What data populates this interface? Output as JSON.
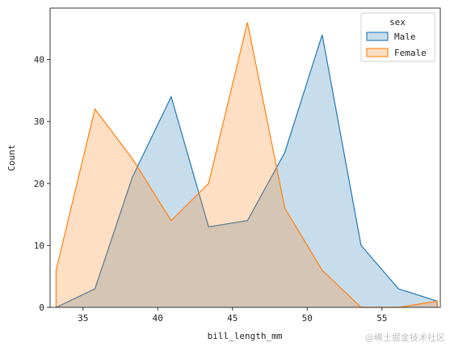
{
  "chart_data": {
    "type": "area",
    "xlabel": "bill_length_mm",
    "ylabel": "Count",
    "xlim": [
      32.8,
      58.9
    ],
    "ylim": [
      0,
      48.3
    ],
    "xticks": [
      35,
      40,
      45,
      50,
      55
    ],
    "yticks": [
      0,
      10,
      20,
      30,
      40
    ],
    "grid": false,
    "legend": {
      "title": "sex",
      "placement": "top-right"
    },
    "series": [
      {
        "name": "Male",
        "color": "#1f77b4",
        "fill": "#1f77b4",
        "x": [
          33.2,
          35.8,
          38.3,
          40.9,
          43.4,
          46.0,
          48.5,
          51.0,
          53.6,
          56.1,
          58.7
        ],
        "y": [
          0,
          3,
          21,
          34,
          13,
          14,
          25,
          44,
          10,
          3,
          1
        ]
      },
      {
        "name": "Female",
        "color": "#ff7f0e",
        "fill": "#ff7f0e",
        "x": [
          33.2,
          35.8,
          38.3,
          40.9,
          43.4,
          46.0,
          48.5,
          51.0,
          53.6,
          56.1,
          58.7
        ],
        "y": [
          6,
          32,
          24,
          14,
          20,
          46,
          16,
          6,
          0,
          0,
          1
        ]
      }
    ]
  },
  "watermark": "@稀土掘金技术社区"
}
